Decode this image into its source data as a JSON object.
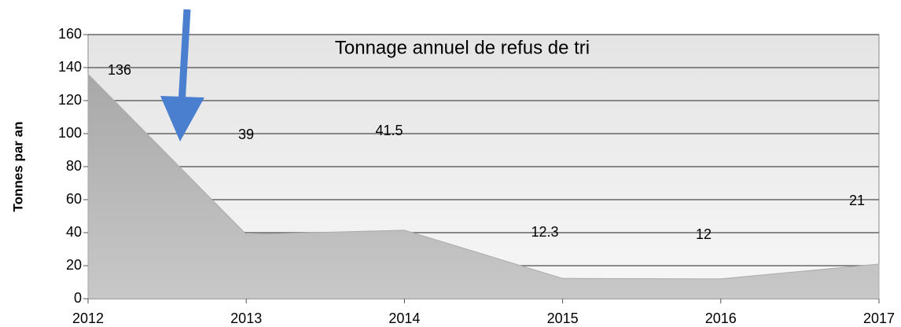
{
  "chart_data": {
    "type": "area",
    "title": "Tonnage annuel de refus de tri",
    "y_label": "Tonnes par an",
    "x": [
      2012,
      2013,
      2014,
      2015,
      2016,
      2017
    ],
    "values": [
      136,
      39,
      41.5,
      12.3,
      12,
      21
    ],
    "color": "#b4b4b4",
    "xlim": [
      2012,
      2017
    ],
    "xticks": [
      2012,
      2013,
      2014,
      2015,
      2016,
      2017
    ],
    "ylim": [
      0,
      160
    ],
    "yticks": [
      0,
      20,
      40,
      60,
      80,
      100,
      120,
      140,
      160
    ],
    "grid": true
  }
}
